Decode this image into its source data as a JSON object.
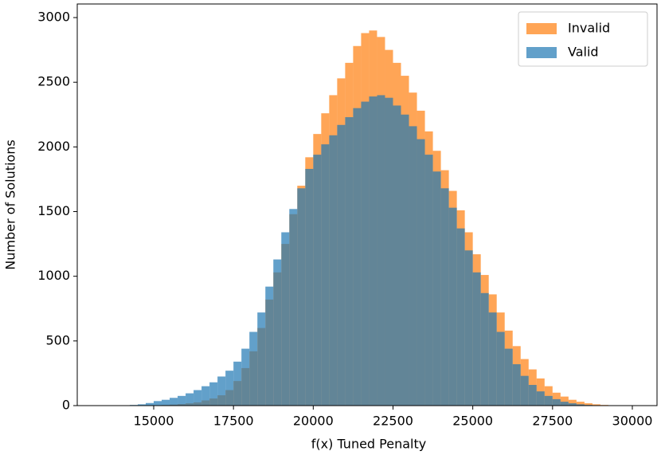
{
  "chart_data": {
    "type": "histogram",
    "x_label": "f(x) Tuned Penalty",
    "y_label": "Number of Solutions",
    "bins": [
      14000,
      14250,
      14500,
      14750,
      15000,
      15250,
      15500,
      15750,
      16000,
      16250,
      16500,
      16750,
      17000,
      17250,
      17500,
      17750,
      18000,
      18250,
      18500,
      18750,
      19000,
      19250,
      19500,
      19750,
      20000,
      20250,
      20500,
      20750,
      21000,
      21250,
      21500,
      21750,
      22000,
      22250,
      22500,
      22750,
      23000,
      23250,
      23500,
      23750,
      24000,
      24250,
      24500,
      24750,
      25000,
      25250,
      25500,
      25750,
      26000,
      26250,
      26500,
      26750,
      27000,
      27250,
      27500,
      27750,
      28000,
      28250,
      28500,
      28750,
      29000,
      29250,
      29500
    ],
    "series": [
      {
        "name": "Invalid",
        "color": "#ff7f0e",
        "values": [
          0,
          0,
          1,
          2,
          3,
          5,
          8,
          12,
          18,
          25,
          40,
          55,
          80,
          120,
          190,
          290,
          420,
          600,
          820,
          1030,
          1250,
          1480,
          1700,
          1920,
          2100,
          2260,
          2400,
          2530,
          2650,
          2780,
          2880,
          2900,
          2850,
          2750,
          2650,
          2550,
          2420,
          2280,
          2120,
          1970,
          1820,
          1660,
          1510,
          1340,
          1170,
          1010,
          860,
          720,
          580,
          460,
          360,
          280,
          210,
          150,
          100,
          70,
          45,
          30,
          18,
          10,
          5,
          2
        ]
      },
      {
        "name": "Valid",
        "color": "#1f77b4",
        "values": [
          3,
          5,
          10,
          20,
          35,
          45,
          60,
          75,
          95,
          120,
          150,
          180,
          225,
          270,
          340,
          440,
          570,
          720,
          920,
          1130,
          1340,
          1520,
          1680,
          1830,
          1940,
          2020,
          2090,
          2170,
          2230,
          2300,
          2350,
          2390,
          2400,
          2380,
          2320,
          2250,
          2160,
          2060,
          1940,
          1810,
          1680,
          1530,
          1370,
          1200,
          1030,
          870,
          720,
          570,
          440,
          320,
          230,
          160,
          110,
          75,
          50,
          30,
          18,
          10,
          5,
          3,
          1,
          0
        ]
      }
    ],
    "opacity": 0.7,
    "xlim": [
      12604,
      30774
    ],
    "xticks": [
      15000,
      17500,
      20000,
      22500,
      25000,
      27500,
      30000
    ],
    "ylim": [
      0,
      3105
    ],
    "yticks": [
      0,
      500,
      1000,
      1500,
      2000,
      2500,
      3000
    ],
    "legend": "upper right"
  }
}
